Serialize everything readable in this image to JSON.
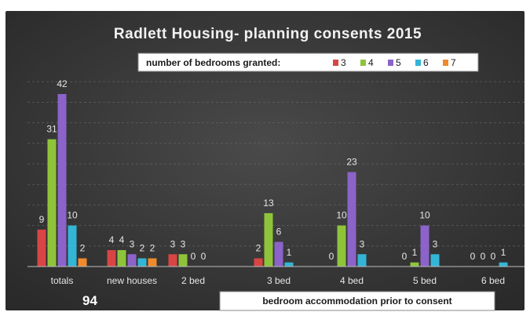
{
  "chart_data": {
    "type": "bar",
    "title": "Radlett Housing- planning consents 2015",
    "legend_title": "number of bedrooms granted:",
    "legend_position": "top",
    "xlabel": "bedroom accommodation  prior to consent",
    "ylabel": "",
    "ylim": [
      0,
      50
    ],
    "grid": true,
    "categories": [
      "totals",
      "new houses",
      "2 bed",
      "3 bed",
      "4 bed",
      "5 bed",
      "6 bed"
    ],
    "series": [
      {
        "name": "3",
        "values": [
          9,
          4,
          3,
          2,
          0,
          0,
          0
        ],
        "color": "#d94545"
      },
      {
        "name": "4",
        "values": [
          31,
          4,
          3,
          13,
          10,
          1,
          0
        ],
        "color": "#8fc43a"
      },
      {
        "name": "5",
        "values": [
          42,
          3,
          0,
          6,
          23,
          10,
          0
        ],
        "color": "#8b63c9"
      },
      {
        "name": "6",
        "values": [
          10,
          2,
          0,
          1,
          3,
          3,
          1
        ],
        "color": "#33b5d6"
      },
      {
        "name": "7",
        "values": [
          2,
          2,
          null,
          null,
          null,
          null,
          null
        ],
        "color": "#f08a2c"
      }
    ],
    "data_labels": [
      [
        "9",
        "4",
        "3",
        "2",
        "0",
        "0",
        "0"
      ],
      [
        "31",
        "4",
        "3",
        "13",
        "10",
        "1",
        "0"
      ],
      [
        "42",
        "3",
        "0",
        "6",
        "23",
        "10",
        "0"
      ],
      [
        "10",
        "2",
        "0",
        "1",
        "3",
        "3",
        "1"
      ],
      [
        "2",
        "2",
        "",
        "",
        "",
        "",
        ""
      ]
    ]
  },
  "annotation": {
    "number": "94"
  }
}
